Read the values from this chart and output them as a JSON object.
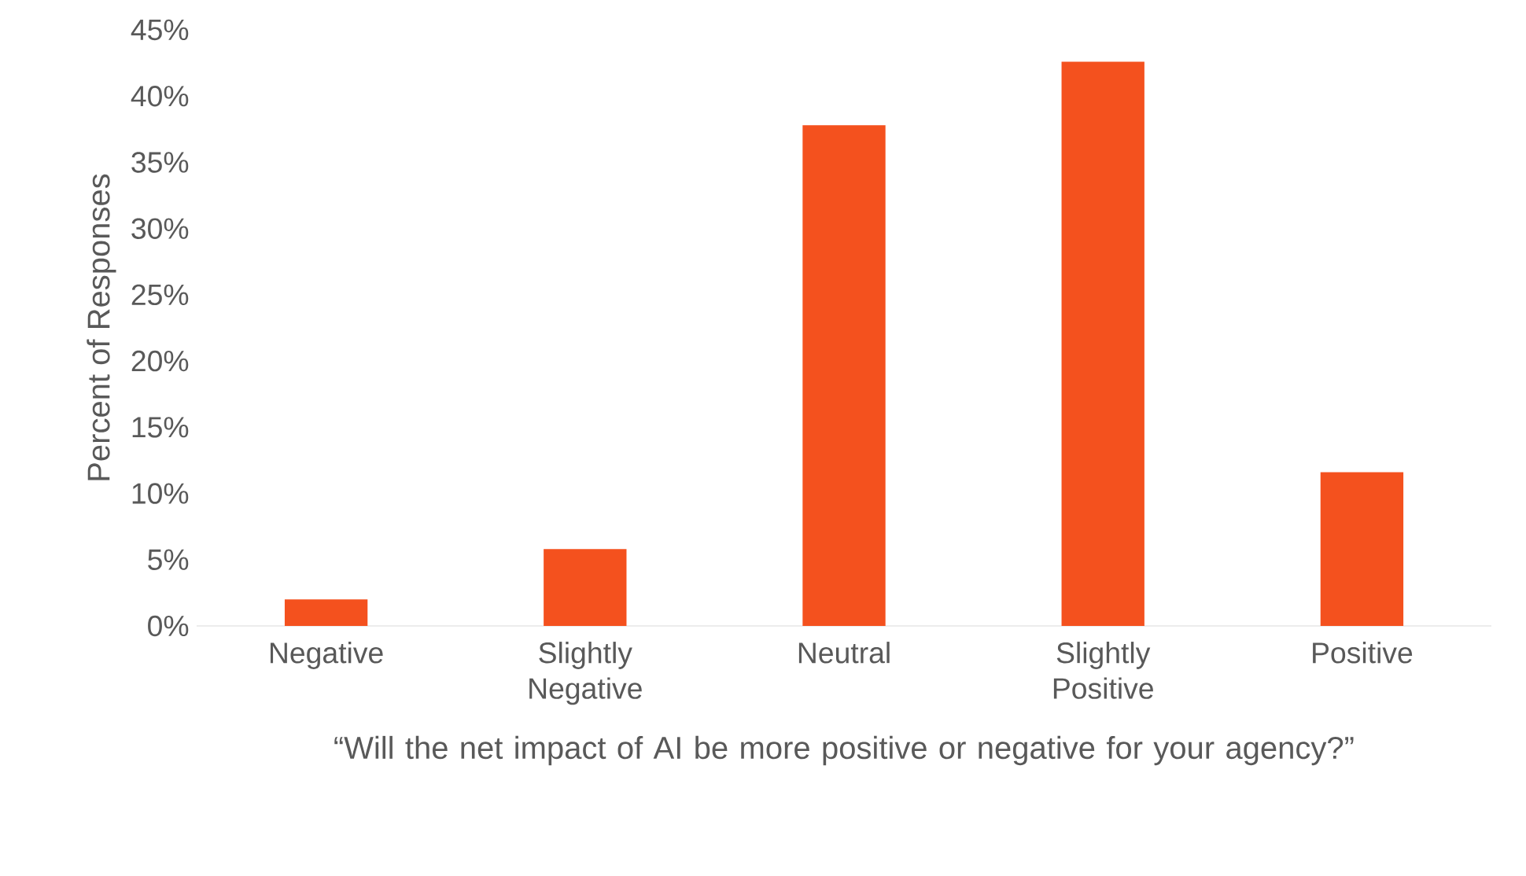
{
  "chart_data": {
    "type": "bar",
    "ylabel": "Percent of Responses",
    "xlabel": "“Will the net impact of AI be more positive or negative for your agency?”",
    "categories": [
      "Negative",
      "Slightly Negative",
      "Neutral",
      "Slightly Positive",
      "Positive"
    ],
    "values": [
      2.0,
      5.8,
      37.8,
      42.6,
      11.6
    ],
    "color": "#f4511e",
    "ylim": [
      0,
      45
    ],
    "yticks": [
      {
        "value": 0,
        "label": "0%"
      },
      {
        "value": 5,
        "label": "5%"
      },
      {
        "value": 10,
        "label": "10%"
      },
      {
        "value": 15,
        "label": "15%"
      },
      {
        "value": 20,
        "label": "20%"
      },
      {
        "value": 25,
        "label": "25%"
      },
      {
        "value": 30,
        "label": "30%"
      },
      {
        "value": 35,
        "label": "35%"
      },
      {
        "value": 40,
        "label": "40%"
      },
      {
        "value": 45,
        "label": "45%"
      }
    ]
  }
}
